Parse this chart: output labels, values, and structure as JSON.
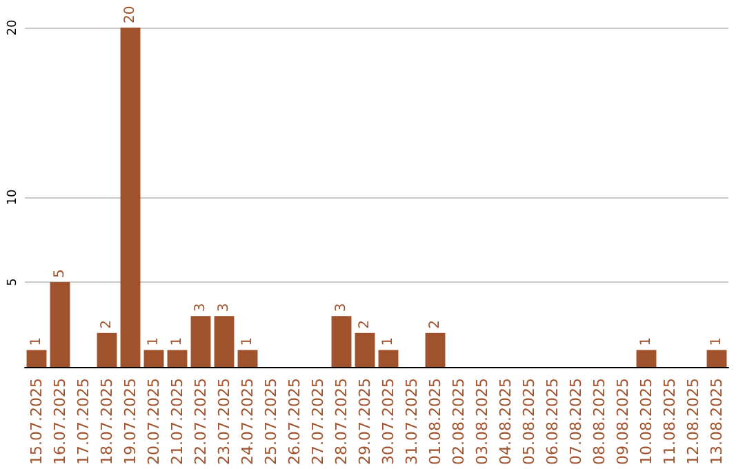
{
  "chart_data": {
    "type": "bar",
    "categories": [
      "15.07.2025",
      "16.07.2025",
      "17.07.2025",
      "18.07.2025",
      "19.07.2025",
      "20.07.2025",
      "21.07.2025",
      "22.07.2025",
      "23.07.2025",
      "24.07.2025",
      "25.07.2025",
      "26.07.2025",
      "27.07.2025",
      "28.07.2025",
      "29.07.2025",
      "30.07.2025",
      "31.07.2025",
      "01.08.2025",
      "02.08.2025",
      "03.08.2025",
      "04.08.2025",
      "05.08.2025",
      "06.08.2025",
      "07.08.2025",
      "08.08.2025",
      "09.08.2025",
      "10.08.2025",
      "11.08.2025",
      "12.08.2025",
      "13.08.2025"
    ],
    "values": [
      1,
      5,
      0,
      2,
      20,
      1,
      1,
      3,
      3,
      1,
      0,
      0,
      0,
      3,
      2,
      1,
      0,
      2,
      0,
      0,
      0,
      0,
      0,
      0,
      0,
      0,
      1,
      0,
      0,
      1
    ],
    "value_labels": [
      "1",
      "5",
      null,
      "2",
      "20",
      "1",
      "1",
      "3",
      "3",
      "1",
      null,
      null,
      null,
      "3",
      "2",
      "1",
      null,
      "2",
      null,
      null,
      null,
      null,
      null,
      null,
      null,
      null,
      "1",
      null,
      null,
      "1"
    ],
    "color": "#a0522d",
    "ylim": [
      0,
      20
    ],
    "yticks": [
      5,
      10,
      20
    ],
    "grid": "y"
  }
}
